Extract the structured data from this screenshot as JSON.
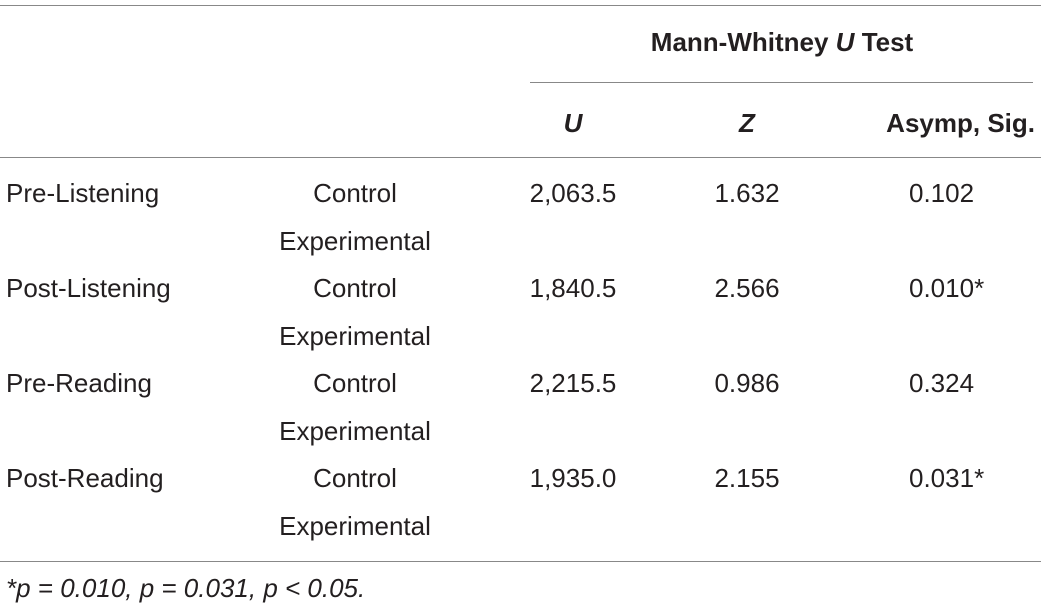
{
  "table": {
    "header": {
      "title_parts": [
        "Mann-Whitney",
        "U",
        "Test"
      ],
      "columns": [
        "U",
        "Z",
        "Asymp, Sig."
      ]
    },
    "rows": [
      {
        "label": "Pre-Listening",
        "groups": [
          "Control",
          "Experimental"
        ],
        "U": "2,063.5",
        "Z": "1.632",
        "sig": "0.102"
      },
      {
        "label": "Post-Listening",
        "groups": [
          "Control",
          "Experimental"
        ],
        "U": "1,840.5",
        "Z": "2.566",
        "sig": "0.010*"
      },
      {
        "label": "Pre-Reading",
        "groups": [
          "Control",
          "Experimental"
        ],
        "U": "2,215.5",
        "Z": "0.986",
        "sig": "0.324"
      },
      {
        "label": "Post-Reading",
        "groups": [
          "Control",
          "Experimental"
        ],
        "U": "1,935.0",
        "Z": "2.155",
        "sig": "0.031*"
      }
    ],
    "footnote": "*p = 0.010, p = 0.031, p < 0.05."
  }
}
